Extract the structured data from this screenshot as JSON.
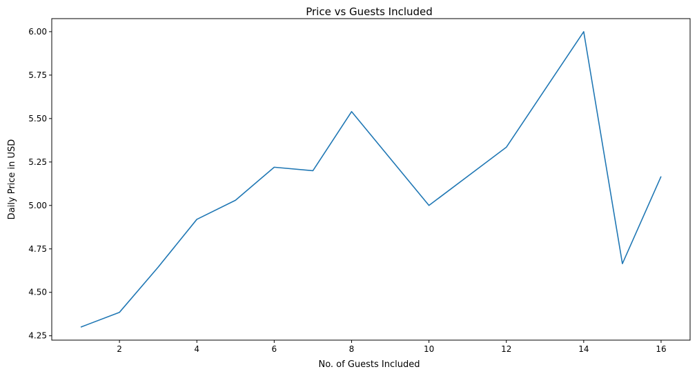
{
  "chart_data": {
    "type": "line",
    "title": "Price vs Guests Included",
    "xlabel": "No. of Guests Included",
    "ylabel": "Daily Price in USD",
    "xlim": [
      0.25,
      16.75
    ],
    "ylim": [
      4.225,
      6.075
    ],
    "xticks": [
      2,
      4,
      6,
      8,
      10,
      12,
      14,
      16
    ],
    "yticks": [
      4.25,
      4.5,
      4.75,
      5.0,
      5.25,
      5.5,
      5.75,
      6.0
    ],
    "ytick_labels": [
      "4.25",
      "4.50",
      "4.75",
      "5.00",
      "5.25",
      "5.50",
      "5.75",
      "6.00"
    ],
    "grid": false,
    "series": [
      {
        "color": "#1f77b4",
        "x": [
          1,
          2,
          3,
          4,
          5,
          6,
          7,
          8,
          10,
          12,
          14,
          15,
          16
        ],
        "y": [
          4.3,
          4.385,
          4.645,
          4.92,
          5.03,
          5.22,
          5.2,
          5.54,
          5.0,
          5.335,
          6.0,
          4.665,
          5.167
        ]
      }
    ]
  }
}
